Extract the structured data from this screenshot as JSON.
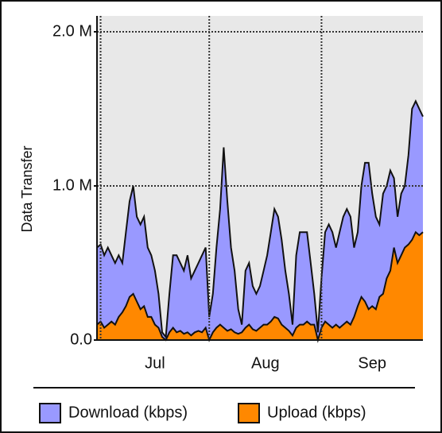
{
  "chart_data": {
    "type": "area",
    "y_label": "Data Transfer",
    "xlim": [
      0,
      90
    ],
    "xticks": [
      {
        "value": 1,
        "label": "Jul"
      },
      {
        "value": 31,
        "label": "Aug"
      },
      {
        "value": 62,
        "label": "Sep"
      }
    ],
    "ylim": [
      0,
      2
    ],
    "yticks": [
      {
        "value": 0,
        "label": "0.0"
      },
      {
        "value": 1,
        "label": "1.0 M"
      },
      {
        "value": 2,
        "label": "2.0 M"
      }
    ],
    "grid": true,
    "legend": "bottom",
    "series": [
      {
        "name": "Download (kbps)",
        "color": "#9999ff",
        "values": [
          0.6,
          0.62,
          0.55,
          0.6,
          0.55,
          0.5,
          0.55,
          0.5,
          0.7,
          0.9,
          1.0,
          0.8,
          0.75,
          0.8,
          0.6,
          0.55,
          0.45,
          0.3,
          0.05,
          0.02,
          0.3,
          0.55,
          0.55,
          0.5,
          0.45,
          0.55,
          0.4,
          0.45,
          0.5,
          0.55,
          0.6,
          0.15,
          0.3,
          0.6,
          0.85,
          1.25,
          0.9,
          0.6,
          0.45,
          0.2,
          0.1,
          0.45,
          0.5,
          0.35,
          0.3,
          0.35,
          0.45,
          0.55,
          0.7,
          0.85,
          0.8,
          0.65,
          0.45,
          0.3,
          0.1,
          0.55,
          0.7,
          0.7,
          0.7,
          0.5,
          0.3,
          0.05,
          0.4,
          0.7,
          0.75,
          0.7,
          0.6,
          0.7,
          0.8,
          0.85,
          0.8,
          0.6,
          0.7,
          1.0,
          1.15,
          1.15,
          0.95,
          0.8,
          0.75,
          0.95,
          1.0,
          1.1,
          1.05,
          0.8,
          0.95,
          1.0,
          1.2,
          1.5,
          1.55,
          1.5,
          1.45
        ]
      },
      {
        "name": "Upload (kbps)",
        "color": "#ff8800",
        "values": [
          0.1,
          0.12,
          0.08,
          0.1,
          0.12,
          0.1,
          0.15,
          0.18,
          0.22,
          0.28,
          0.3,
          0.25,
          0.2,
          0.22,
          0.15,
          0.15,
          0.1,
          0.08,
          0.02,
          0.0,
          0.05,
          0.08,
          0.05,
          0.06,
          0.04,
          0.05,
          0.03,
          0.05,
          0.06,
          0.05,
          0.08,
          0.0,
          0.05,
          0.08,
          0.1,
          0.08,
          0.06,
          0.07,
          0.05,
          0.04,
          0.05,
          0.08,
          0.1,
          0.07,
          0.06,
          0.08,
          0.1,
          0.1,
          0.12,
          0.15,
          0.14,
          0.1,
          0.08,
          0.06,
          0.03,
          0.08,
          0.1,
          0.1,
          0.12,
          0.1,
          0.1,
          0.0,
          0.08,
          0.12,
          0.1,
          0.08,
          0.1,
          0.08,
          0.1,
          0.12,
          0.1,
          0.15,
          0.22,
          0.28,
          0.25,
          0.2,
          0.22,
          0.2,
          0.28,
          0.3,
          0.4,
          0.45,
          0.6,
          0.5,
          0.55,
          0.6,
          0.62,
          0.65,
          0.7,
          0.68,
          0.7
        ]
      }
    ]
  }
}
